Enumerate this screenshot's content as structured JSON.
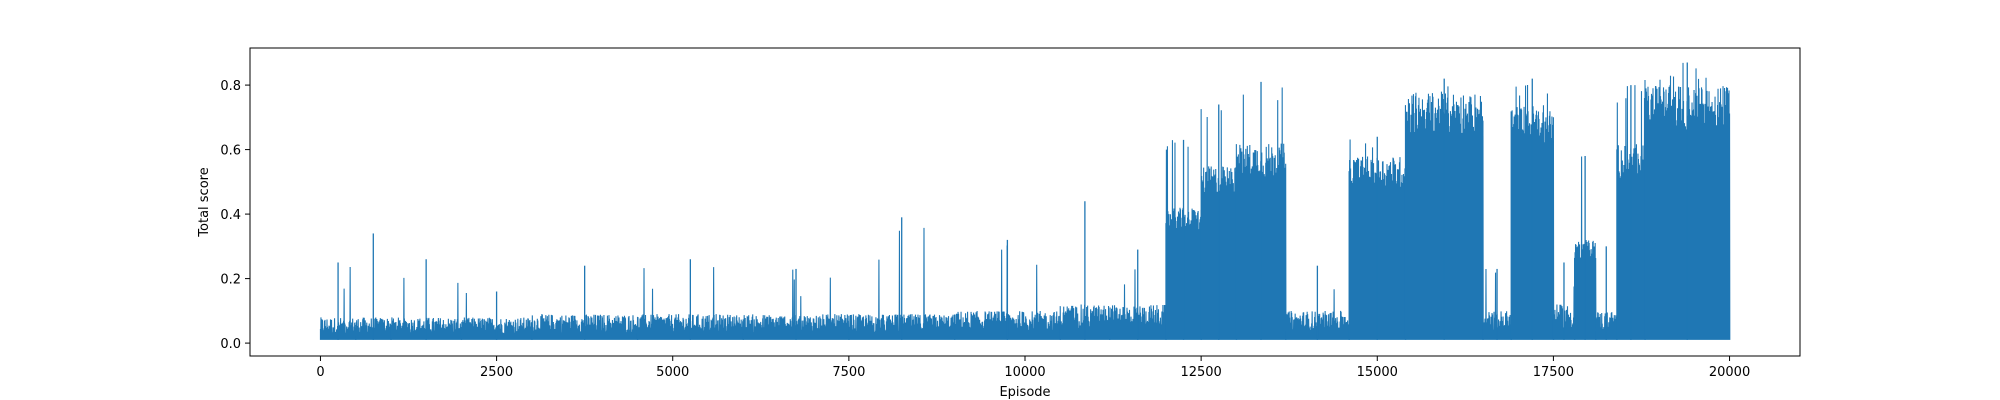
{
  "chart_data": {
    "type": "line",
    "title": "",
    "xlabel": "Episode",
    "ylabel": "Total score",
    "xlim": [
      -1000,
      21000
    ],
    "ylim": [
      -0.04,
      0.915
    ],
    "x_ticks": [
      0,
      2500,
      5000,
      7500,
      10000,
      12500,
      15000,
      17500,
      20000
    ],
    "x_tick_labels": [
      "0",
      "2500",
      "5000",
      "7500",
      "10000",
      "12500",
      "15000",
      "17500",
      "20000"
    ],
    "y_ticks": [
      0.0,
      0.2,
      0.4,
      0.6,
      0.8
    ],
    "y_tick_labels": [
      "0.0",
      "0.2",
      "0.4",
      "0.6",
      "0.8"
    ],
    "grid": false,
    "legend": null,
    "series": [
      {
        "name": "Total score",
        "color": "#1f77b4",
        "note": "dense per-episode signal approximated by envelope segments [x_start, x_end, typical_high, peak_high]",
        "episodes": 20000,
        "floor": 0.01,
        "envelope": [
          [
            0,
            500,
            0.08,
            0.25
          ],
          [
            500,
            1000,
            0.08,
            0.34
          ],
          [
            1000,
            2000,
            0.08,
            0.26
          ],
          [
            2000,
            3000,
            0.08,
            0.16
          ],
          [
            3000,
            4500,
            0.09,
            0.24
          ],
          [
            4500,
            6000,
            0.09,
            0.26
          ],
          [
            6000,
            7500,
            0.09,
            0.23
          ],
          [
            7500,
            9000,
            0.09,
            0.39
          ],
          [
            9000,
            10500,
            0.1,
            0.32
          ],
          [
            10500,
            11200,
            0.12,
            0.44
          ],
          [
            11200,
            12000,
            0.12,
            0.29
          ],
          [
            12000,
            12500,
            0.42,
            0.63
          ],
          [
            12500,
            13000,
            0.55,
            0.74
          ],
          [
            13000,
            13700,
            0.62,
            0.81
          ],
          [
            13700,
            14600,
            0.1,
            0.24
          ],
          [
            14600,
            15400,
            0.58,
            0.64
          ],
          [
            15400,
            16500,
            0.78,
            0.82
          ],
          [
            16500,
            16900,
            0.1,
            0.23
          ],
          [
            16900,
            17500,
            0.74,
            0.82
          ],
          [
            17500,
            17800,
            0.12,
            0.25
          ],
          [
            17800,
            18100,
            0.32,
            0.58
          ],
          [
            18100,
            18400,
            0.1,
            0.3
          ],
          [
            18400,
            18800,
            0.62,
            0.8
          ],
          [
            18800,
            20000,
            0.8,
            0.87
          ]
        ]
      }
    ]
  }
}
